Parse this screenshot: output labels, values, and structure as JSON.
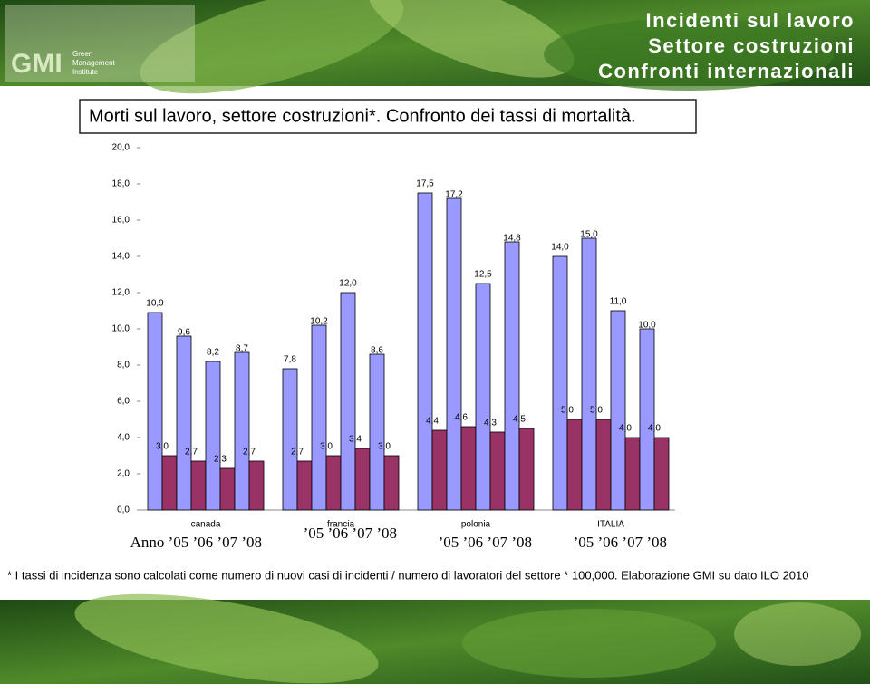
{
  "header": {
    "title_lines": [
      "Incidenti sul lavoro",
      "Settore costruzioni",
      "Confronti internazionali"
    ],
    "logo": "GMI",
    "logo_sub": [
      "Green",
      "Management",
      "Institute"
    ]
  },
  "chart_data": {
    "type": "grouped-bar",
    "title": "Morti sul lavoro, settore costruzioni*. Confronto dei tassi di mortalità.",
    "categories": [
      "canada",
      "francia",
      "polonia",
      "ITALIA"
    ],
    "year_labels": [
      "Anno ’05 ’06 ’07 ’08",
      "’05 ’06 ’07 ’08",
      "’05 ’06 ’07 ’08",
      "’05 ’06 ’07 ’08"
    ],
    "series": [
      {
        "color": "#9999ff",
        "values": [
          [
            10.9,
            9.6,
            8.2,
            8.7
          ],
          [
            7.8,
            10.2,
            12.0,
            8.6
          ],
          [
            17.5,
            17.2,
            12.5,
            14.8
          ],
          [
            14.0,
            15.0,
            11.0,
            10.0
          ]
        ],
        "value_labels": [
          [
            "10,9",
            "9,6",
            "8,2",
            "8,7"
          ],
          [
            "7,8",
            "10,2",
            "12,0",
            "8,6"
          ],
          [
            "17,5",
            "17,2",
            "12,5",
            "14,8"
          ],
          [
            "14,0",
            "15,0",
            "11,0",
            "10,0"
          ]
        ]
      },
      {
        "color": "#993366",
        "values": [
          [
            3.0,
            2.7,
            2.3,
            2.7
          ],
          [
            2.7,
            3.0,
            3.4,
            3.0
          ],
          [
            4.4,
            4.6,
            4.3,
            4.5
          ],
          [
            5.0,
            5.0,
            4.0,
            4.0
          ]
        ],
        "value_labels": [
          [
            "3,0",
            "2,7",
            "2,3",
            "2,7"
          ],
          [
            "2,7",
            "3,0",
            "3,4",
            "3,0"
          ],
          [
            "4,4",
            "4,6",
            "4,3",
            "4,5"
          ],
          [
            "5,0",
            "5,0",
            "4,0",
            "4,0"
          ]
        ]
      }
    ],
    "ylim": [
      0,
      20
    ],
    "yticks": [
      {
        "value": 0,
        "label": "0,0"
      },
      {
        "value": 2,
        "label": "2,0"
      },
      {
        "value": 4,
        "label": "4,0"
      },
      {
        "value": 6,
        "label": "6,0"
      },
      {
        "value": 8,
        "label": "8,0"
      },
      {
        "value": 10,
        "label": "10,0"
      },
      {
        "value": 12,
        "label": "12,0"
      },
      {
        "value": 14,
        "label": "14,0"
      },
      {
        "value": 16,
        "label": "16,0"
      },
      {
        "value": 18,
        "label": "18,0"
      },
      {
        "value": 20,
        "label": "20,0"
      }
    ]
  },
  "footnote": "* I tassi di incidenza sono calcolati come numero di nuovi casi di incidenti / numero di lavoratori del settore * 100,000. Elaborazione GMI su dato ILO 2010"
}
